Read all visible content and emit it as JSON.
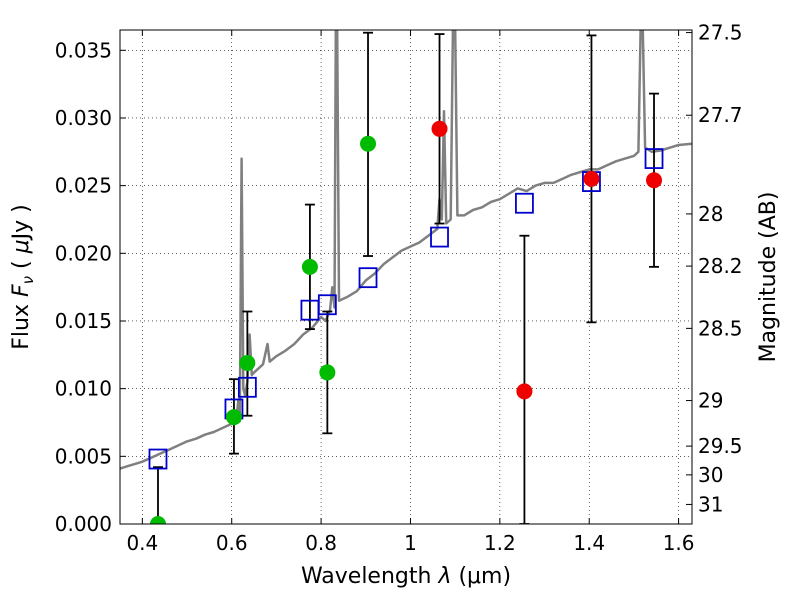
{
  "chart_data": {
    "type": "scatter",
    "xlabel": "Wavelength  λ (μm)",
    "xlabel_parts": {
      "main": "Wavelength  ",
      "symbol": "λ",
      "unit": " (μm)"
    },
    "ylabel": "Flux  Fν  ( μJy )",
    "ylabel_parts": {
      "main": "Flux  ",
      "symbol": "F",
      "subscript": "ν",
      "unit_open": "  ( ",
      "unit_mu": "μ",
      "unit_close": "Jy )"
    },
    "y2label": "Magnitude (AB)",
    "xlim": [
      0.35,
      1.63
    ],
    "ylim": [
      0.0,
      0.0365
    ],
    "grid": true,
    "x_ticks": [
      {
        "value": 0.4,
        "label": "0.4"
      },
      {
        "value": 0.6,
        "label": "0.6"
      },
      {
        "value": 0.8,
        "label": "0.8"
      },
      {
        "value": 1.0,
        "label": "1"
      },
      {
        "value": 1.2,
        "label": "1.2"
      },
      {
        "value": 1.4,
        "label": "1.4"
      },
      {
        "value": 1.6,
        "label": "1.6"
      }
    ],
    "y_ticks": [
      {
        "value": 0.0,
        "label": "0.000"
      },
      {
        "value": 0.005,
        "label": "0.005"
      },
      {
        "value": 0.01,
        "label": "0.010"
      },
      {
        "value": 0.015,
        "label": "0.015"
      },
      {
        "value": 0.02,
        "label": "0.020"
      },
      {
        "value": 0.025,
        "label": "0.025"
      },
      {
        "value": 0.03,
        "label": "0.030"
      },
      {
        "value": 0.035,
        "label": "0.035"
      }
    ],
    "y2_ticks": [
      {
        "value": 27.5,
        "label": "27.5"
      },
      {
        "value": 27.7,
        "label": "27.7"
      },
      {
        "value": 28.0,
        "label": "28"
      },
      {
        "value": 28.2,
        "label": "28.2"
      },
      {
        "value": 28.5,
        "label": "28.5"
      },
      {
        "value": 29.0,
        "label": "29"
      },
      {
        "value": 29.5,
        "label": "29.5"
      },
      {
        "value": 30.0,
        "label": "30"
      },
      {
        "value": 31.0,
        "label": "31"
      }
    ],
    "sed_model": {
      "color": "#808080",
      "points": [
        [
          0.35,
          0.0041
        ],
        [
          0.38,
          0.0044
        ],
        [
          0.4,
          0.0046
        ],
        [
          0.42,
          0.0049
        ],
        [
          0.44,
          0.0052
        ],
        [
          0.46,
          0.0055
        ],
        [
          0.48,
          0.0058
        ],
        [
          0.5,
          0.0061
        ],
        [
          0.52,
          0.0063
        ],
        [
          0.54,
          0.0066
        ],
        [
          0.56,
          0.0068
        ],
        [
          0.58,
          0.0071
        ],
        [
          0.6,
          0.0074
        ],
        [
          0.61,
          0.0076
        ],
        [
          0.615,
          0.0092
        ],
        [
          0.618,
          0.0076
        ],
        [
          0.622,
          0.027
        ],
        [
          0.626,
          0.01
        ],
        [
          0.63,
          0.0095
        ],
        [
          0.635,
          0.0105
        ],
        [
          0.64,
          0.014
        ],
        [
          0.645,
          0.011
        ],
        [
          0.65,
          0.0112
        ],
        [
          0.66,
          0.0115
        ],
        [
          0.67,
          0.0118
        ],
        [
          0.68,
          0.0133
        ],
        [
          0.685,
          0.012
        ],
        [
          0.7,
          0.0124
        ],
        [
          0.72,
          0.0128
        ],
        [
          0.74,
          0.0133
        ],
        [
          0.76,
          0.014
        ],
        [
          0.78,
          0.0145
        ],
        [
          0.8,
          0.0153
        ],
        [
          0.81,
          0.015
        ],
        [
          0.82,
          0.0158
        ],
        [
          0.825,
          0.0175
        ],
        [
          0.83,
          0.016
        ],
        [
          0.833,
          0.0365
        ],
        [
          0.836,
          0.0365
        ],
        [
          0.84,
          0.0165
        ],
        [
          0.86,
          0.0168
        ],
        [
          0.88,
          0.0172
        ],
        [
          0.9,
          0.018
        ],
        [
          0.92,
          0.0185
        ],
        [
          0.94,
          0.0192
        ],
        [
          0.96,
          0.0197
        ],
        [
          0.98,
          0.0202
        ],
        [
          1.0,
          0.0205
        ],
        [
          1.02,
          0.0208
        ],
        [
          1.04,
          0.0213
        ],
        [
          1.06,
          0.0218
        ],
        [
          1.065,
          0.024
        ],
        [
          1.07,
          0.0225
        ],
        [
          1.075,
          0.0305
        ],
        [
          1.08,
          0.0222
        ],
        [
          1.09,
          0.0225
        ],
        [
          1.095,
          0.0365
        ],
        [
          1.1,
          0.0365
        ],
        [
          1.105,
          0.0228
        ],
        [
          1.12,
          0.0228
        ],
        [
          1.14,
          0.0232
        ],
        [
          1.16,
          0.0234
        ],
        [
          1.18,
          0.0238
        ],
        [
          1.2,
          0.024
        ],
        [
          1.22,
          0.0244
        ],
        [
          1.24,
          0.0248
        ],
        [
          1.26,
          0.0246
        ],
        [
          1.28,
          0.025
        ],
        [
          1.3,
          0.0252
        ],
        [
          1.32,
          0.0252
        ],
        [
          1.34,
          0.0255
        ],
        [
          1.36,
          0.0258
        ],
        [
          1.38,
          0.026
        ],
        [
          1.4,
          0.0262
        ],
        [
          1.42,
          0.0262
        ],
        [
          1.44,
          0.0265
        ],
        [
          1.46,
          0.0268
        ],
        [
          1.48,
          0.027
        ],
        [
          1.5,
          0.0272
        ],
        [
          1.51,
          0.0275
        ],
        [
          1.515,
          0.0365
        ],
        [
          1.52,
          0.0365
        ],
        [
          1.525,
          0.0278
        ],
        [
          1.54,
          0.0275
        ],
        [
          1.56,
          0.0276
        ],
        [
          1.58,
          0.0278
        ],
        [
          1.6,
          0.028
        ],
        [
          1.63,
          0.0281
        ]
      ]
    },
    "model_photometry": {
      "color": "#0000cc",
      "points": [
        [
          0.435,
          0.0048
        ],
        [
          0.605,
          0.0085
        ],
        [
          0.635,
          0.0101
        ],
        [
          0.775,
          0.0158
        ],
        [
          0.814,
          0.0162
        ],
        [
          0.905,
          0.0182
        ],
        [
          1.065,
          0.0212
        ],
        [
          1.255,
          0.0237
        ],
        [
          1.405,
          0.0253
        ],
        [
          1.545,
          0.027
        ]
      ]
    },
    "observed_optical": {
      "color": "#00bb00",
      "points": [
        {
          "x": 0.435,
          "y": 0.0,
          "err_low": 0.0,
          "err_high": 0.0042
        },
        {
          "x": 0.605,
          "y": 0.0079,
          "err_low": 0.0052,
          "err_high": 0.0107
        },
        {
          "x": 0.635,
          "y": 0.0119,
          "err_low": 0.008,
          "err_high": 0.0157
        },
        {
          "x": 0.775,
          "y": 0.019,
          "err_low": 0.0144,
          "err_high": 0.0236
        },
        {
          "x": 0.814,
          "y": 0.0112,
          "err_low": 0.0067,
          "err_high": 0.0157
        },
        {
          "x": 0.905,
          "y": 0.0281,
          "err_low": 0.0198,
          "err_high": 0.0363
        }
      ]
    },
    "observed_nir": {
      "color": "#ee0000",
      "points": [
        {
          "x": 1.065,
          "y": 0.0292,
          "err_low": 0.0222,
          "err_high": 0.0362
        },
        {
          "x": 1.255,
          "y": 0.0098,
          "err_low": 0.0,
          "err_high": 0.0213
        },
        {
          "x": 1.405,
          "y": 0.0255,
          "err_low": 0.0149,
          "err_high": 0.0361
        },
        {
          "x": 1.545,
          "y": 0.0254,
          "err_low": 0.019,
          "err_high": 0.0318
        }
      ]
    }
  }
}
